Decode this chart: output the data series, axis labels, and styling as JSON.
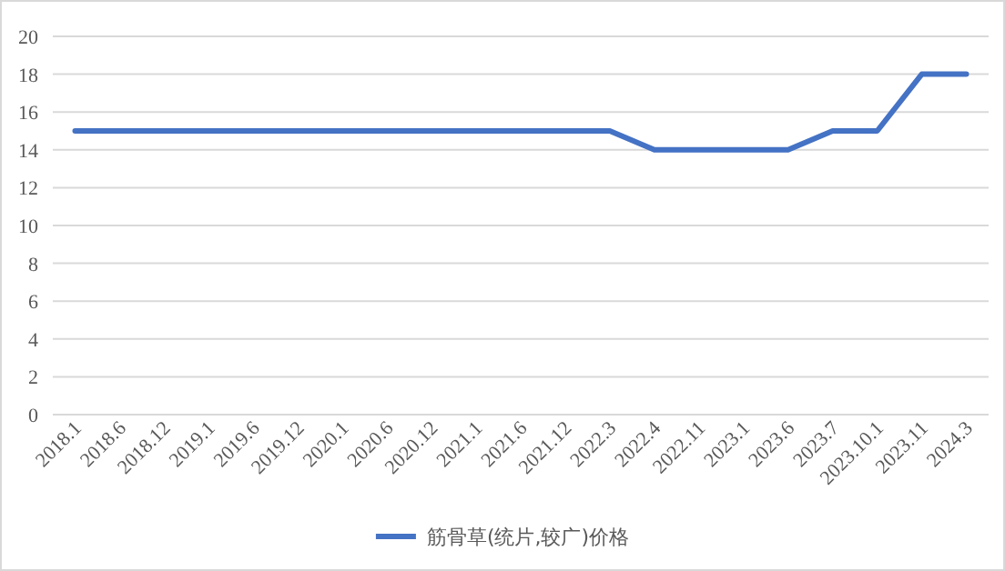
{
  "chart_data": {
    "type": "line",
    "categories": [
      "2018.1",
      "2018.6",
      "2018.12",
      "2019.1",
      "2019.6",
      "2019.12",
      "2020.1",
      "2020.6",
      "2020.12",
      "2021.1",
      "2021.6",
      "2021.12",
      "2022.3",
      "2022.4",
      "2022.11",
      "2023.1",
      "2023.6",
      "2023.7",
      "2023.10.1",
      "2023.11",
      "2024.3"
    ],
    "series": [
      {
        "name": "筋骨草(统片,较广)价格",
        "color": "#4472c4",
        "values": [
          15,
          15,
          15,
          15,
          15,
          15,
          15,
          15,
          15,
          15,
          15,
          15,
          15,
          14,
          14,
          14,
          14,
          15,
          15,
          18,
          18
        ]
      }
    ],
    "ylim": [
      0,
      20
    ],
    "yticks": [
      0,
      2,
      4,
      6,
      8,
      10,
      12,
      14,
      16,
      18,
      20
    ],
    "grid": "y",
    "legend": "bottom",
    "marker": "none",
    "line_style": "solid"
  }
}
